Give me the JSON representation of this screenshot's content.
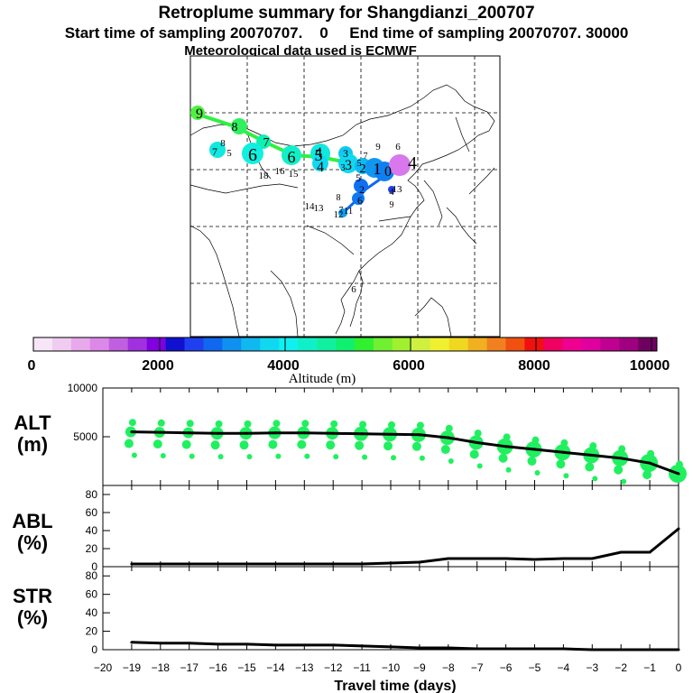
{
  "header": {
    "title": "Retroplume summary for Shangdianzi_200707",
    "sampling": "Start time of sampling 20070707.    0     End time of sampling 20070707. 30000",
    "met": "Meteorological data used is ECMWF"
  },
  "colorbar": {
    "label": "Altitude (m)",
    "ticks": [
      "0",
      "2000",
      "4000",
      "6000",
      "8000",
      "10000"
    ],
    "colors": [
      "#f7e6f7",
      "#f0ccf0",
      "#e8a8ec",
      "#dc88e8",
      "#c060e0",
      "#a030e0",
      "#8000e0",
      "#1010d0",
      "#2040f0",
      "#1068f0",
      "#1090f0",
      "#10b8f0",
      "#10d8f0",
      "#10f0f0",
      "#10f0c8",
      "#10f0a0",
      "#10f070",
      "#30f030",
      "#70f030",
      "#a0f030",
      "#d0f040",
      "#f0f030",
      "#f0d820",
      "#f0b020",
      "#f08020",
      "#f05010",
      "#f01010",
      "#f00060",
      "#f00090",
      "#e000a0",
      "#c00090",
      "#a00080",
      "#700060"
    ]
  },
  "map": {
    "labels": [
      "9",
      "8",
      "7",
      "7",
      "8",
      "5",
      "6",
      "6",
      "5",
      "4",
      "4",
      "3",
      "3",
      "2",
      "1",
      "0",
      "4",
      "9",
      "6",
      "5",
      "7",
      "3",
      "2",
      "6",
      "5",
      "4",
      "9",
      "8",
      "7",
      "18",
      "16",
      "15",
      "14",
      "13",
      "12",
      "11",
      "13",
      "6"
    ]
  },
  "xaxis": {
    "label": "Travel time (days)",
    "ticks": [
      "−20",
      "−19",
      "−18",
      "−17",
      "−16",
      "−15",
      "−14",
      "−13",
      "−12",
      "−11",
      "−10",
      "−9",
      "−8",
      "−7",
      "−6",
      "−5",
      "−4",
      "−3",
      "−2",
      "−1",
      "0"
    ]
  },
  "chart_data": [
    {
      "type": "line",
      "title": "ALT",
      "ylabel": "ALT (m)",
      "ylabel_line1": "ALT",
      "ylabel_line2": "(m)",
      "xlim": [
        -20,
        0
      ],
      "ylim": [
        0,
        10000
      ],
      "yticks": [
        "10000",
        "5000"
      ],
      "x": [
        -19,
        -18,
        -17,
        -16,
        -15,
        -14,
        -13,
        -12,
        -11,
        -10,
        -9,
        -8,
        -7,
        -6,
        -5,
        -4,
        -3,
        -2,
        -1,
        0
      ],
      "values": [
        5500,
        5450,
        5400,
        5350,
        5350,
        5400,
        5400,
        5350,
        5300,
        5250,
        5200,
        4900,
        4400,
        4000,
        3700,
        3400,
        3100,
        2800,
        2300,
        1200
      ]
    },
    {
      "type": "line",
      "title": "ABL",
      "ylabel": "ABL (%)",
      "ylabel_line1": "ABL",
      "ylabel_line2": "(%)",
      "xlim": [
        -20,
        0
      ],
      "ylim": [
        0,
        90
      ],
      "yticks": [
        "80",
        "60",
        "40",
        "20",
        "0"
      ],
      "x": [
        -19,
        -18,
        -17,
        -16,
        -15,
        -14,
        -13,
        -12,
        -11,
        -10,
        -9,
        -8,
        -7,
        -6,
        -5,
        -4,
        -3,
        -2,
        -1,
        0
      ],
      "values": [
        3,
        3,
        3,
        3,
        3,
        3,
        3,
        3,
        3,
        4,
        5,
        9,
        9,
        9,
        8,
        9,
        9,
        16,
        16,
        42
      ]
    },
    {
      "type": "line",
      "title": "STR",
      "ylabel": "STR (%)",
      "ylabel_line1": "STR",
      "ylabel_line2": "(%)",
      "xlim": [
        -20,
        0
      ],
      "ylim": [
        0,
        90
      ],
      "yticks": [
        "80",
        "60",
        "40",
        "20",
        "0"
      ],
      "x": [
        -19,
        -18,
        -17,
        -16,
        -15,
        -14,
        -13,
        -12,
        -11,
        -10,
        -9,
        -8,
        -7,
        -6,
        -5,
        -4,
        -3,
        -2,
        -1,
        0
      ],
      "values": [
        8,
        7,
        7,
        6,
        6,
        5,
        5,
        5,
        4,
        3,
        2,
        2,
        1,
        1,
        1,
        1,
        0,
        0,
        0,
        0
      ]
    }
  ]
}
